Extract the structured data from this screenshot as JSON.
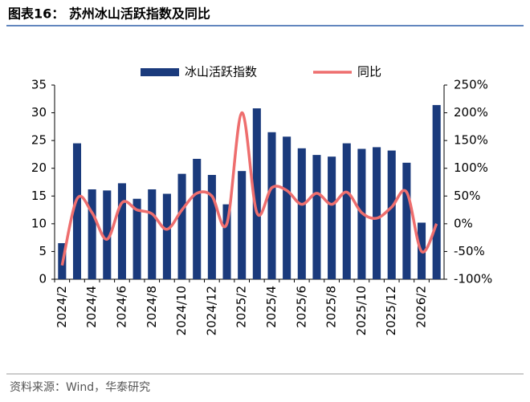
{
  "chart_data": {
    "type": "combo",
    "title": "图表16：  苏州冰山活跃指数及同比",
    "source": "资料来源：Wind，华泰研究",
    "categories": [
      "2024/2",
      null,
      "2024/4",
      null,
      "2024/6",
      null,
      "2024/8",
      null,
      "2024/10",
      null,
      "2024/12",
      null,
      "2025/2",
      null,
      "2025/4",
      null,
      "2025/6",
      null,
      "2025/8",
      null,
      "2025/10",
      null,
      "2025/12",
      null,
      "2026/2",
      null
    ],
    "series": [
      {
        "name": "冰山活跃指数",
        "type": "bar",
        "color": "#1a3a7c",
        "axis": "y",
        "values": [
          6.5,
          24.5,
          16.2,
          16,
          17.3,
          14.5,
          16.2,
          15.4,
          19,
          21.7,
          18.8,
          13.5,
          19.5,
          30.8,
          26.5,
          25.7,
          23.6,
          22.4,
          22.1,
          24.5,
          23.5,
          23.8,
          23.2,
          21,
          10.2,
          31.4
        ]
      },
      {
        "name": "同比",
        "type": "line",
        "color": "#ee6e6e",
        "axis": "y2",
        "values": [
          -75,
          45,
          20,
          -28,
          38,
          25,
          18,
          -10,
          25,
          55,
          50,
          0,
          200,
          20,
          65,
          60,
          35,
          55,
          35,
          57,
          20,
          10,
          30,
          57,
          -50,
          0
        ]
      }
    ],
    "ylim": [
      0,
      35
    ],
    "yticks": [
      0,
      5,
      10,
      15,
      20,
      25,
      30,
      35
    ],
    "y2lim": [
      -100,
      250
    ],
    "y2ticks": [
      {
        "value": -100,
        "label": "-100%"
      },
      {
        "value": -50,
        "label": "-50%"
      },
      {
        "value": 0,
        "label": "0%"
      },
      {
        "value": 50,
        "label": "50%"
      },
      {
        "value": 100,
        "label": "100%"
      },
      {
        "value": 150,
        "label": "150%"
      },
      {
        "value": 200,
        "label": "200%"
      },
      {
        "value": 250,
        "label": "250%"
      }
    ],
    "grid": false
  }
}
